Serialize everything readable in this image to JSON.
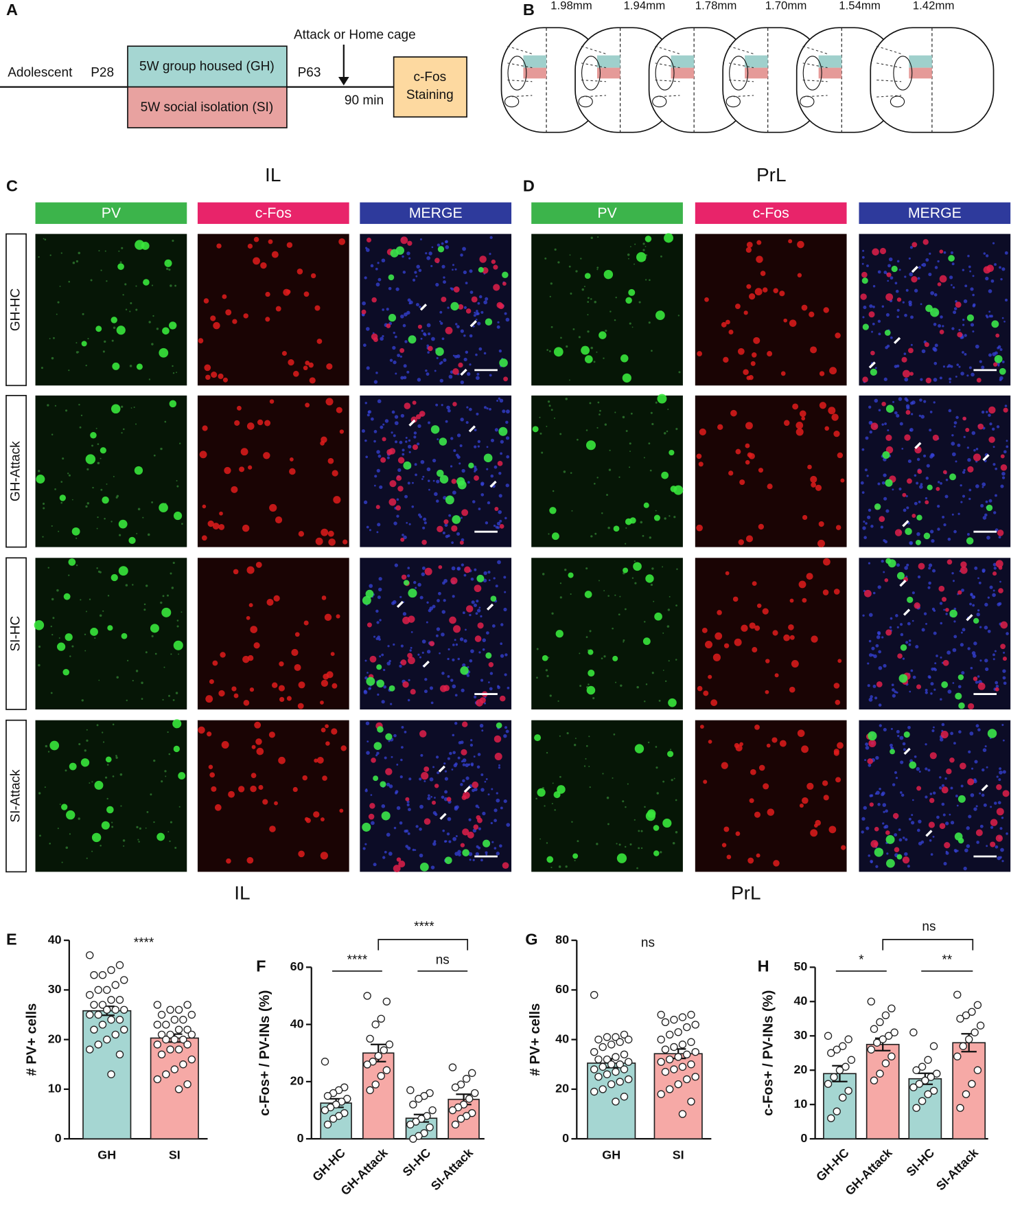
{
  "panel_a": {
    "label": "A",
    "stage": "Adolescent",
    "start": "P28",
    "end": "P63",
    "gh": "5W group housed (GH)",
    "si": "5W social isolation (SI)",
    "event": "Attack or Home cage",
    "delay": "90 min",
    "assay": [
      "c-Fos",
      "Staining"
    ]
  },
  "panel_b": {
    "label": "B",
    "sections": [
      "1.98mm",
      "1.94mm",
      "1.78mm",
      "1.70mm",
      "1.54mm",
      "1.42mm"
    ]
  },
  "panel_c": {
    "label": "C",
    "region": "IL",
    "channels": [
      "PV",
      "c-Fos",
      "MERGE"
    ],
    "groups": [
      "GH-HC",
      "GH-Attack",
      "SI-HC",
      "SI-Attack"
    ]
  },
  "panel_d": {
    "label": "D",
    "region": "PrL",
    "channels": [
      "PV",
      "c-Fos",
      "MERGE"
    ]
  },
  "region_labels": [
    "IL",
    "PrL"
  ],
  "chart_data": [
    {
      "type": "bar",
      "label": "E",
      "ylabel": "# PV+ cells",
      "categories": [
        "GH",
        "SI"
      ],
      "colors": [
        "#a5d6d2",
        "#f6a9a6"
      ],
      "values": [
        25.8,
        20.3
      ],
      "errors": [
        0.9,
        0.8
      ],
      "points": [
        [
          37,
          35,
          34,
          33,
          33,
          32,
          31,
          30,
          30,
          29,
          28,
          28,
          27,
          27,
          26,
          26,
          26,
          25,
          25,
          24,
          24,
          23,
          22,
          22,
          21,
          20,
          19,
          18,
          17,
          13
        ],
        [
          27,
          27,
          26,
          26,
          25,
          25,
          24,
          24,
          23,
          23,
          22,
          22,
          21,
          21,
          21,
          20,
          20,
          20,
          19,
          19,
          18,
          18,
          17,
          16,
          15,
          14,
          13,
          12,
          11,
          10
        ]
      ],
      "ylim": [
        0,
        40
      ],
      "yticks": [
        0,
        10,
        20,
        30,
        40
      ],
      "annotations": [
        {
          "text": "****",
          "between": [
            "GH",
            "SI"
          ]
        }
      ]
    },
    {
      "type": "bar",
      "label": "F",
      "ylabel": "c-Fos+ / PV-INs (%)",
      "categories": [
        "GH-HC",
        "GH-Attack",
        "SI-HC",
        "SI-Attack"
      ],
      "colors": [
        "#a5d6d2",
        "#f6a9a6",
        "#a5d6d2",
        "#f6a9a6"
      ],
      "values": [
        12.5,
        30,
        7.2,
        13.8
      ],
      "errors": [
        1.5,
        3,
        1.3,
        1.8
      ],
      "points": [
        [
          27,
          18,
          17,
          16,
          15,
          14,
          13,
          12,
          11,
          10,
          9,
          8,
          7,
          5
        ],
        [
          50,
          48,
          42,
          40,
          35,
          33,
          31,
          29,
          27,
          26,
          24,
          22,
          19,
          17
        ],
        [
          17,
          16,
          15,
          14,
          12,
          10,
          8,
          7,
          6,
          5,
          4,
          2,
          1,
          0
        ],
        [
          25,
          23,
          21,
          19,
          18,
          16,
          14,
          12,
          11,
          10,
          9,
          8,
          7,
          5
        ]
      ],
      "ylim": [
        0,
        60
      ],
      "yticks": [
        0,
        20,
        40,
        60
      ],
      "annotations": [
        {
          "text": "****",
          "between": [
            "GH-HC",
            "GH-Attack"
          ]
        },
        {
          "text": "ns",
          "between": [
            "SI-HC",
            "SI-Attack"
          ]
        },
        {
          "text": "****",
          "between": [
            "GH-Attack",
            "SI-Attack"
          ]
        }
      ]
    },
    {
      "type": "bar",
      "label": "G",
      "ylabel": "# PV+ cells",
      "categories": [
        "GH",
        "SI"
      ],
      "colors": [
        "#a5d6d2",
        "#f6a9a6"
      ],
      "values": [
        30.5,
        34.3
      ],
      "errors": [
        1.8,
        1.9
      ],
      "points": [
        [
          58,
          42,
          41,
          41,
          40,
          40,
          39,
          38,
          37,
          35,
          34,
          33,
          32,
          32,
          31,
          30,
          30,
          29,
          28,
          28,
          27,
          26,
          25,
          24,
          23,
          22,
          20,
          19,
          17,
          15
        ],
        [
          50,
          50,
          49,
          48,
          47,
          46,
          45,
          43,
          42,
          40,
          39,
          38,
          37,
          36,
          35,
          34,
          33,
          32,
          31,
          30,
          29,
          28,
          27,
          25,
          24,
          22,
          20,
          18,
          15,
          10
        ]
      ],
      "ylim": [
        0,
        80
      ],
      "yticks": [
        0,
        20,
        40,
        60,
        80
      ],
      "annotations": [
        {
          "text": "ns",
          "between": [
            "GH",
            "SI"
          ]
        }
      ]
    },
    {
      "type": "bar",
      "label": "H",
      "ylabel": "c-Fos+ / PV-INs (%)",
      "categories": [
        "GH-HC",
        "GH-Attack",
        "SI-HC",
        "SI-Attack"
      ],
      "colors": [
        "#a5d6d2",
        "#f6a9a6",
        "#a5d6d2",
        "#f6a9a6"
      ],
      "values": [
        19,
        27.5,
        17.5,
        28
      ],
      "errors": [
        2.3,
        1.8,
        1.6,
        2.6
      ],
      "points": [
        [
          30,
          29,
          27,
          26,
          25,
          23,
          21,
          20,
          18,
          16,
          14,
          12,
          8,
          6
        ],
        [
          40,
          38,
          36,
          34,
          32,
          31,
          30,
          29,
          28,
          26,
          24,
          22,
          19,
          17
        ],
        [
          31,
          27,
          23,
          21,
          20,
          19,
          18,
          17,
          16,
          15,
          14,
          13,
          11,
          9
        ],
        [
          42,
          39,
          37,
          36,
          35,
          33,
          31,
          29,
          27,
          24,
          20,
          16,
          13,
          9
        ]
      ],
      "ylim": [
        0,
        50
      ],
      "yticks": [
        0,
        10,
        20,
        30,
        40,
        50
      ],
      "annotations": [
        {
          "text": "*",
          "between": [
            "GH-HC",
            "GH-Attack"
          ]
        },
        {
          "text": "**",
          "between": [
            "SI-HC",
            "SI-Attack"
          ]
        },
        {
          "text": "ns",
          "between": [
            "GH-Attack",
            "SI-Attack"
          ]
        }
      ]
    }
  ]
}
